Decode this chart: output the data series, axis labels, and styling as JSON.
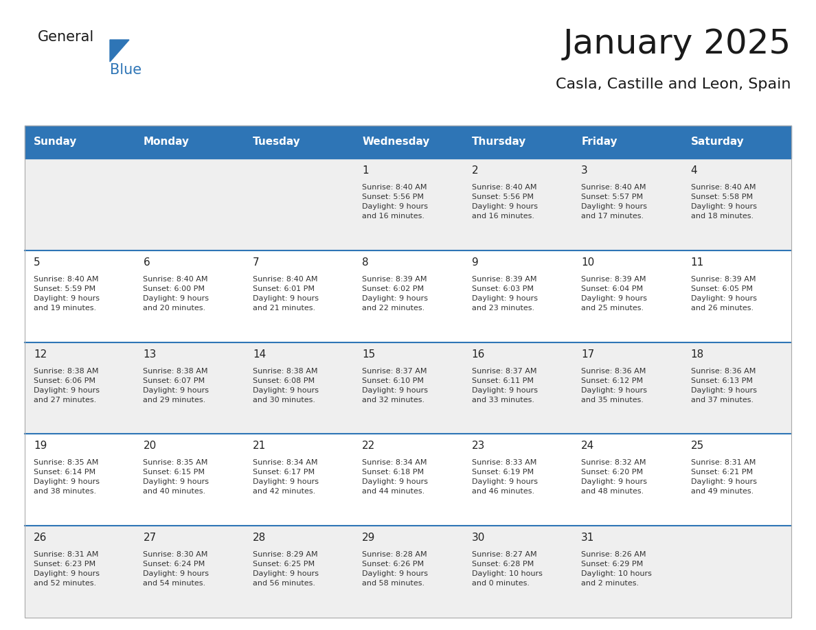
{
  "title": "January 2025",
  "subtitle": "Casla, Castille and Leon, Spain",
  "header_bg": "#2E75B6",
  "header_text_color": "#FFFFFF",
  "day_header_names": [
    "Sunday",
    "Monday",
    "Tuesday",
    "Wednesday",
    "Thursday",
    "Friday",
    "Saturday"
  ],
  "row_bg_even": "#EFEFEF",
  "row_bg_odd": "#FFFFFF",
  "separator_color": "#2E75B6",
  "day_number_color": "#222222",
  "cell_text_color": "#333333",
  "logo_general_color": "#1a1a1a",
  "logo_blue_color": "#2E75B6",
  "logo_triangle_color": "#2E75B6",
  "calendar": [
    [
      null,
      null,
      null,
      {
        "day": 1,
        "sunrise": "8:40 AM",
        "sunset": "5:56 PM",
        "daylight": "9 hours and 16 minutes"
      },
      {
        "day": 2,
        "sunrise": "8:40 AM",
        "sunset": "5:56 PM",
        "daylight": "9 hours and 16 minutes"
      },
      {
        "day": 3,
        "sunrise": "8:40 AM",
        "sunset": "5:57 PM",
        "daylight": "9 hours and 17 minutes"
      },
      {
        "day": 4,
        "sunrise": "8:40 AM",
        "sunset": "5:58 PM",
        "daylight": "9 hours and 18 minutes"
      }
    ],
    [
      {
        "day": 5,
        "sunrise": "8:40 AM",
        "sunset": "5:59 PM",
        "daylight": "9 hours and 19 minutes"
      },
      {
        "day": 6,
        "sunrise": "8:40 AM",
        "sunset": "6:00 PM",
        "daylight": "9 hours and 20 minutes"
      },
      {
        "day": 7,
        "sunrise": "8:40 AM",
        "sunset": "6:01 PM",
        "daylight": "9 hours and 21 minutes"
      },
      {
        "day": 8,
        "sunrise": "8:39 AM",
        "sunset": "6:02 PM",
        "daylight": "9 hours and 22 minutes"
      },
      {
        "day": 9,
        "sunrise": "8:39 AM",
        "sunset": "6:03 PM",
        "daylight": "9 hours and 23 minutes"
      },
      {
        "day": 10,
        "sunrise": "8:39 AM",
        "sunset": "6:04 PM",
        "daylight": "9 hours and 25 minutes"
      },
      {
        "day": 11,
        "sunrise": "8:39 AM",
        "sunset": "6:05 PM",
        "daylight": "9 hours and 26 minutes"
      }
    ],
    [
      {
        "day": 12,
        "sunrise": "8:38 AM",
        "sunset": "6:06 PM",
        "daylight": "9 hours and 27 minutes"
      },
      {
        "day": 13,
        "sunrise": "8:38 AM",
        "sunset": "6:07 PM",
        "daylight": "9 hours and 29 minutes"
      },
      {
        "day": 14,
        "sunrise": "8:38 AM",
        "sunset": "6:08 PM",
        "daylight": "9 hours and 30 minutes"
      },
      {
        "day": 15,
        "sunrise": "8:37 AM",
        "sunset": "6:10 PM",
        "daylight": "9 hours and 32 minutes"
      },
      {
        "day": 16,
        "sunrise": "8:37 AM",
        "sunset": "6:11 PM",
        "daylight": "9 hours and 33 minutes"
      },
      {
        "day": 17,
        "sunrise": "8:36 AM",
        "sunset": "6:12 PM",
        "daylight": "9 hours and 35 minutes"
      },
      {
        "day": 18,
        "sunrise": "8:36 AM",
        "sunset": "6:13 PM",
        "daylight": "9 hours and 37 minutes"
      }
    ],
    [
      {
        "day": 19,
        "sunrise": "8:35 AM",
        "sunset": "6:14 PM",
        "daylight": "9 hours and 38 minutes"
      },
      {
        "day": 20,
        "sunrise": "8:35 AM",
        "sunset": "6:15 PM",
        "daylight": "9 hours and 40 minutes"
      },
      {
        "day": 21,
        "sunrise": "8:34 AM",
        "sunset": "6:17 PM",
        "daylight": "9 hours and 42 minutes"
      },
      {
        "day": 22,
        "sunrise": "8:34 AM",
        "sunset": "6:18 PM",
        "daylight": "9 hours and 44 minutes"
      },
      {
        "day": 23,
        "sunrise": "8:33 AM",
        "sunset": "6:19 PM",
        "daylight": "9 hours and 46 minutes"
      },
      {
        "day": 24,
        "sunrise": "8:32 AM",
        "sunset": "6:20 PM",
        "daylight": "9 hours and 48 minutes"
      },
      {
        "day": 25,
        "sunrise": "8:31 AM",
        "sunset": "6:21 PM",
        "daylight": "9 hours and 49 minutes"
      }
    ],
    [
      {
        "day": 26,
        "sunrise": "8:31 AM",
        "sunset": "6:23 PM",
        "daylight": "9 hours and 52 minutes"
      },
      {
        "day": 27,
        "sunrise": "8:30 AM",
        "sunset": "6:24 PM",
        "daylight": "9 hours and 54 minutes"
      },
      {
        "day": 28,
        "sunrise": "8:29 AM",
        "sunset": "6:25 PM",
        "daylight": "9 hours and 56 minutes"
      },
      {
        "day": 29,
        "sunrise": "8:28 AM",
        "sunset": "6:26 PM",
        "daylight": "9 hours and 58 minutes"
      },
      {
        "day": 30,
        "sunrise": "8:27 AM",
        "sunset": "6:28 PM",
        "daylight": "10 hours and 0 minutes"
      },
      {
        "day": 31,
        "sunrise": "8:26 AM",
        "sunset": "6:29 PM",
        "daylight": "10 hours and 2 minutes"
      },
      null
    ]
  ]
}
